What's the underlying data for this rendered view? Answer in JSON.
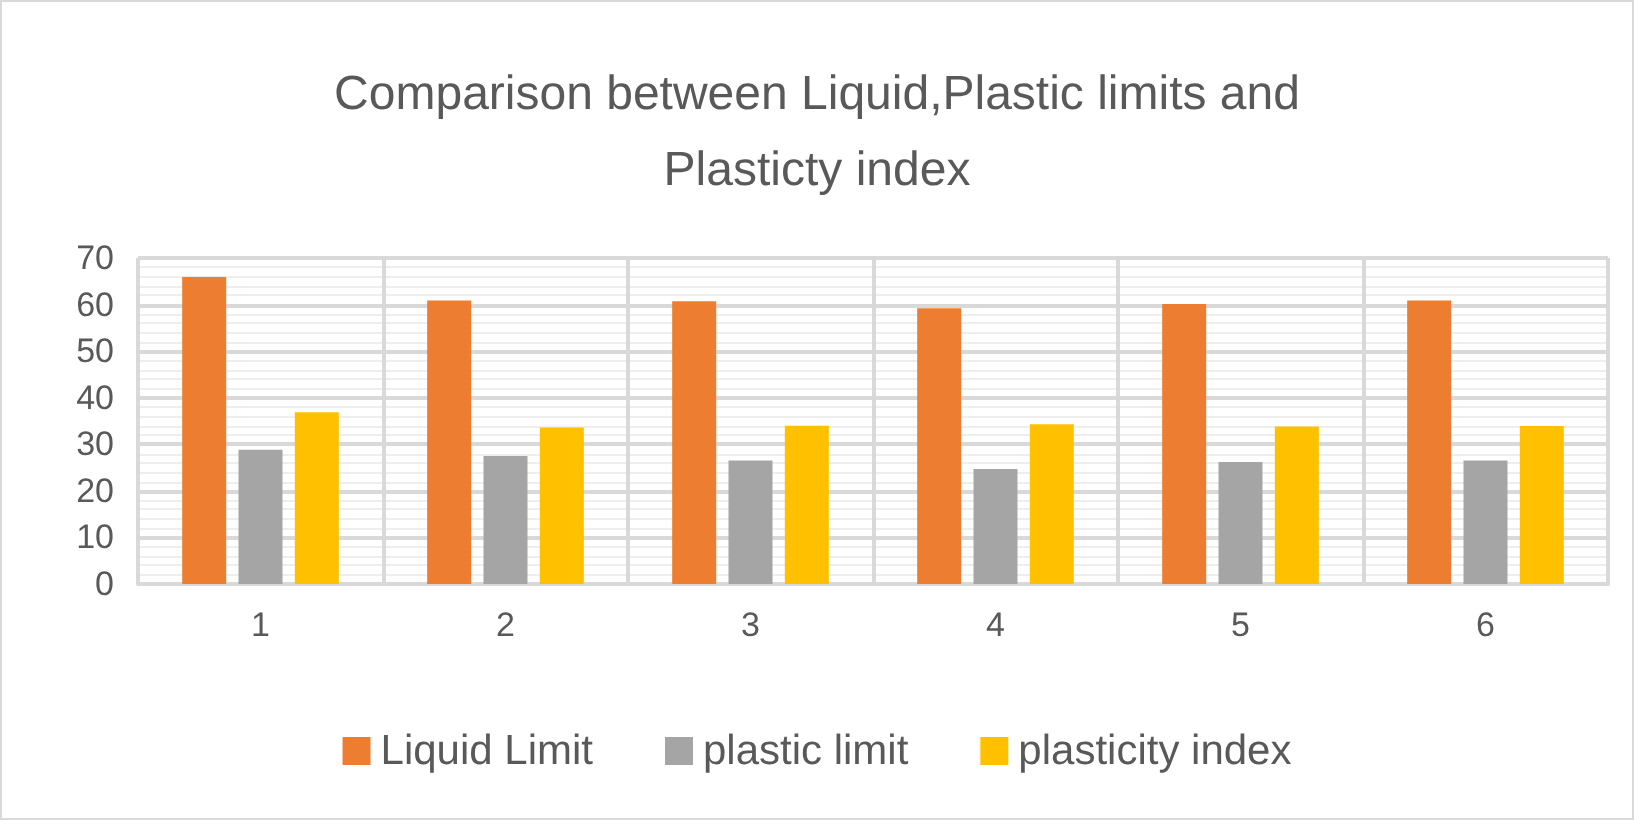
{
  "chart_data": {
    "type": "bar",
    "title": "Comparison between Liquid,Plastic limits and\nPlasticty index",
    "categories": [
      "1",
      "2",
      "3",
      "4",
      "5",
      "6"
    ],
    "series": [
      {
        "name": "Liquid Limit",
        "color": "#ed7d31",
        "values": [
          65.9,
          60.9,
          60.7,
          59.2,
          60.1,
          60.9
        ]
      },
      {
        "name": "plastic limit",
        "color": "#a5a5a5",
        "values": [
          28.8,
          27.5,
          26.5,
          24.7,
          26.2,
          26.5
        ]
      },
      {
        "name": "plasticity index",
        "color": "#ffc000",
        "values": [
          36.9,
          33.6,
          34.0,
          34.3,
          33.8,
          33.9
        ]
      }
    ],
    "ylim": [
      0,
      70
    ],
    "yticks": [
      0,
      10,
      20,
      30,
      40,
      50,
      60,
      70
    ],
    "grid": true,
    "legend": "bottom"
  }
}
